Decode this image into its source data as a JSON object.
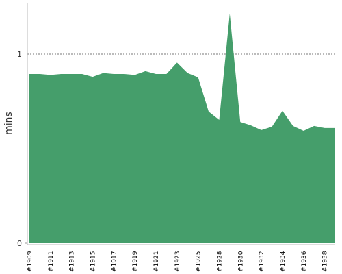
{
  "chart_data": {
    "type": "area",
    "y_label": "mins",
    "color": "#459e6b",
    "categories": [
      "#1909",
      null,
      "#1911",
      null,
      "#1913",
      null,
      "#1915",
      null,
      "#1917",
      null,
      "#1919",
      null,
      "#1921",
      null,
      "#1923",
      null,
      "#1925",
      null,
      "#1928",
      null,
      "#1930",
      null,
      "#1932",
      null,
      "#1934",
      null,
      "#1936",
      null,
      "#1938",
      null
    ],
    "values": [
      0.895,
      0.895,
      0.89,
      0.895,
      0.895,
      0.895,
      0.88,
      0.9,
      0.895,
      0.895,
      0.89,
      0.91,
      0.895,
      0.895,
      0.955,
      0.9,
      0.877,
      0.696,
      0.652,
      1.214,
      0.641,
      0.623,
      0.598,
      0.616,
      0.7,
      0.62,
      0.594,
      0.62,
      0.609,
      0.609
    ],
    "ylim": [
      0,
      1.268
    ],
    "yticks": [
      0,
      1
    ],
    "grid": true
  }
}
